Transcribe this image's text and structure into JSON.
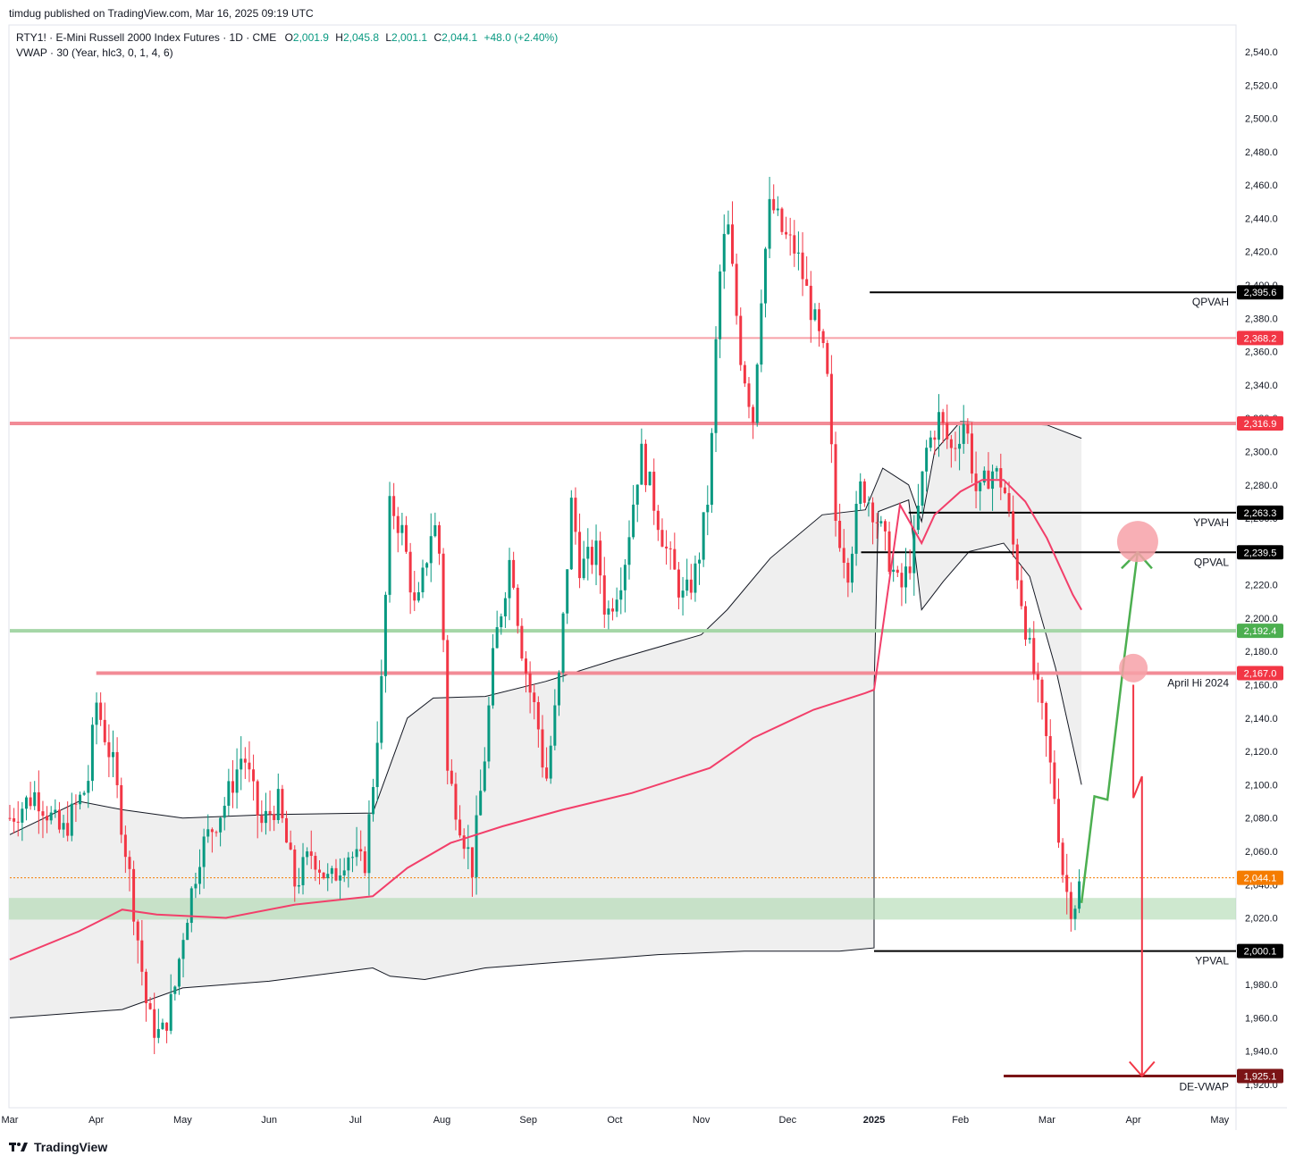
{
  "header": {
    "published": "timdug published on TradingView.com, Mar 16, 2025 09:19 UTC",
    "symbol": "RTY1! · E-Mini Russell 2000 Index Futures · 1D · CME",
    "ohlc": {
      "o_label": "O",
      "o": "2,001.9",
      "h_label": "H",
      "h": "2,045.8",
      "l_label": "L",
      "l": "2,001.1",
      "c_label": "C",
      "c": "2,044.1",
      "change": "+48.0 (+2.40%)"
    },
    "indicator": "VWAP · 30 (Year, hlc3, 0, 1, 4, 6)"
  },
  "footer": {
    "brand": "TradingView",
    "logo_icon": "tradingview-logo-icon"
  },
  "chart_data": {
    "type": "candlestick",
    "y_axis": {
      "range": [
        1915,
        2545
      ],
      "ticks": [
        "2,540.0",
        "2,520.0",
        "2,500.0",
        "2,480.0",
        "2,460.0",
        "2,440.0",
        "2,420.0",
        "2,400.0",
        "2,380.0",
        "2,360.0",
        "2,340.0",
        "2,320.0",
        "2,300.0",
        "2,280.0",
        "2,260.0",
        "2,240.0",
        "2,220.0",
        "2,200.0",
        "2,180.0",
        "2,160.0",
        "2,140.0",
        "2,120.0",
        "2,100.0",
        "2,080.0",
        "2,060.0",
        "2,040.0",
        "2,020.0",
        "2,000.0",
        "1,980.0",
        "1,960.0",
        "1,940.0",
        "1,920.0"
      ]
    },
    "x_axis": {
      "ticks": [
        {
          "label": "Mar",
          "month": 0
        },
        {
          "label": "Apr",
          "month": 1
        },
        {
          "label": "May",
          "month": 2
        },
        {
          "label": "Jun",
          "month": 3
        },
        {
          "label": "Jul",
          "month": 4
        },
        {
          "label": "Aug",
          "month": 5
        },
        {
          "label": "Sep",
          "month": 6
        },
        {
          "label": "Oct",
          "month": 7
        },
        {
          "label": "Nov",
          "month": 8
        },
        {
          "label": "Dec",
          "month": 9
        },
        {
          "label": "2025",
          "month": 10
        },
        {
          "label": "Feb",
          "month": 11
        },
        {
          "label": "Mar",
          "month": 12
        },
        {
          "label": "Apr",
          "month": 13
        },
        {
          "label": "May",
          "month": 14
        }
      ]
    },
    "price_path": [
      [
        0,
        2080
      ],
      [
        0.3,
        2095
      ],
      [
        0.6,
        2070
      ],
      [
        0.9,
        2100
      ],
      [
        1.0,
        2150
      ],
      [
        1.2,
        2110
      ],
      [
        1.4,
        2040
      ],
      [
        1.6,
        1960
      ],
      [
        1.75,
        1948
      ],
      [
        1.9,
        1975
      ],
      [
        2.0,
        2010
      ],
      [
        2.2,
        2060
      ],
      [
        2.5,
        2090
      ],
      [
        2.7,
        2120
      ],
      [
        2.9,
        2075
      ],
      [
        3.1,
        2090
      ],
      [
        3.3,
        2040
      ],
      [
        3.5,
        2060
      ],
      [
        3.7,
        2040
      ],
      [
        3.9,
        2060
      ],
      [
        4.1,
        2050
      ],
      [
        4.2,
        2100
      ],
      [
        4.3,
        2160
      ],
      [
        4.4,
        2270
      ],
      [
        4.55,
        2250
      ],
      [
        4.7,
        2200
      ],
      [
        4.9,
        2260
      ],
      [
        5.0,
        2230
      ],
      [
        5.05,
        2110
      ],
      [
        5.2,
        2080
      ],
      [
        5.35,
        2050
      ],
      [
        5.5,
        2120
      ],
      [
        5.6,
        2180
      ],
      [
        5.8,
        2240
      ],
      [
        5.9,
        2190
      ],
      [
        6.0,
        2160
      ],
      [
        6.1,
        2140
      ],
      [
        6.2,
        2100
      ],
      [
        6.35,
        2160
      ],
      [
        6.5,
        2270
      ],
      [
        6.6,
        2230
      ],
      [
        6.8,
        2240
      ],
      [
        6.9,
        2200
      ],
      [
        7.1,
        2230
      ],
      [
        7.3,
        2300
      ],
      [
        7.45,
        2270
      ],
      [
        7.6,
        2240
      ],
      [
        7.8,
        2210
      ],
      [
        7.95,
        2230
      ],
      [
        8.1,
        2280
      ],
      [
        8.2,
        2400
      ],
      [
        8.3,
        2440
      ],
      [
        8.45,
        2360
      ],
      [
        8.6,
        2320
      ],
      [
        8.7,
        2400
      ],
      [
        8.8,
        2450
      ],
      [
        8.95,
        2430
      ],
      [
        9.1,
        2420
      ],
      [
        9.3,
        2380
      ],
      [
        9.45,
        2350
      ],
      [
        9.55,
        2260
      ],
      [
        9.7,
        2230
      ],
      [
        9.85,
        2280
      ],
      [
        10.0,
        2265
      ],
      [
        10.15,
        2240
      ],
      [
        10.3,
        2215
      ],
      [
        10.45,
        2240
      ],
      [
        10.6,
        2300
      ],
      [
        10.75,
        2320
      ],
      [
        10.9,
        2300
      ],
      [
        11.05,
        2320
      ],
      [
        11.2,
        2270
      ],
      [
        11.35,
        2290
      ],
      [
        11.5,
        2280
      ],
      [
        11.65,
        2230
      ],
      [
        11.8,
        2180
      ],
      [
        11.95,
        2140
      ],
      [
        12.1,
        2090
      ],
      [
        12.2,
        2040
      ],
      [
        12.3,
        2025
      ],
      [
        12.4,
        2044.1
      ]
    ],
    "vwap_line": [
      [
        0,
        1995
      ],
      [
        0.8,
        2012
      ],
      [
        1.3,
        2025
      ],
      [
        1.7,
        2022
      ],
      [
        2.5,
        2020
      ],
      [
        3.3,
        2028
      ],
      [
        4.2,
        2033
      ],
      [
        4.6,
        2050
      ],
      [
        5.1,
        2065
      ],
      [
        5.7,
        2075
      ],
      [
        6.4,
        2085
      ],
      [
        7.2,
        2095
      ],
      [
        8.1,
        2110
      ],
      [
        8.6,
        2128
      ],
      [
        9.3,
        2145
      ],
      [
        9.9,
        2155
      ],
      [
        10.0,
        2157
      ],
      [
        10.3,
        2268
      ],
      [
        10.55,
        2245
      ],
      [
        10.7,
        2262
      ],
      [
        11.0,
        2276
      ],
      [
        11.25,
        2283
      ],
      [
        11.5,
        2283
      ],
      [
        11.75,
        2270
      ],
      [
        12.0,
        2248
      ],
      [
        12.3,
        2214
      ],
      [
        12.4,
        2205
      ]
    ],
    "bands_upper": [
      [
        0,
        2070
      ],
      [
        0.8,
        2090
      ],
      [
        1.3,
        2085
      ],
      [
        2.0,
        2080
      ],
      [
        3.0,
        2082
      ],
      [
        4.2,
        2083
      ],
      [
        4.6,
        2140
      ],
      [
        4.9,
        2152
      ],
      [
        5.5,
        2153
      ],
      [
        6.2,
        2162
      ],
      [
        7.0,
        2175
      ],
      [
        8.0,
        2190
      ],
      [
        8.3,
        2205
      ],
      [
        8.8,
        2236
      ],
      [
        9.4,
        2262
      ],
      [
        9.9,
        2265
      ],
      [
        10.1,
        2290
      ],
      [
        10.4,
        2280
      ],
      [
        10.55,
        2258
      ],
      [
        10.7,
        2300
      ],
      [
        11.0,
        2318
      ],
      [
        11.5,
        2317
      ],
      [
        12.0,
        2316
      ],
      [
        12.4,
        2308
      ]
    ],
    "bands_lower": [
      [
        0,
        1960
      ],
      [
        1.3,
        1965
      ],
      [
        2.0,
        1978
      ],
      [
        3.0,
        1982
      ],
      [
        4.2,
        1990
      ],
      [
        4.4,
        1985
      ],
      [
        4.8,
        1983
      ],
      [
        5.5,
        1990
      ],
      [
        6.5,
        1994
      ],
      [
        7.5,
        1998
      ],
      [
        8.5,
        2000
      ],
      [
        9.6,
        2000
      ],
      [
        10.0,
        2002
      ],
      [
        10.0,
        2157
      ],
      [
        10.05,
        2264
      ],
      [
        10.4,
        2271
      ],
      [
        10.55,
        2205
      ],
      [
        10.8,
        2222
      ],
      [
        11.1,
        2240
      ],
      [
        11.5,
        2245
      ],
      [
        11.8,
        2225
      ],
      [
        12.1,
        2170
      ],
      [
        12.4,
        2100
      ]
    ],
    "levels": [
      {
        "name": "QPVAH",
        "value": 2395.6,
        "label": "2,395.6",
        "color": "#000000",
        "from_month": 9.95,
        "line": "solid",
        "width": 2
      },
      {
        "name": "",
        "value": 2368.2,
        "label": "2,368.2",
        "color": "#f7a1a8",
        "tag_color": "#f23645",
        "from_month": 0,
        "line": "solid",
        "width": 2
      },
      {
        "name": "",
        "value": 2316.9,
        "label": "2,316.9",
        "color": "#f28b96",
        "tag_color": "#f23645",
        "from_month": 0,
        "line": "solid",
        "width": 4
      },
      {
        "name": "YPVAH",
        "value": 2263.3,
        "label": "2,263.3",
        "color": "#000000",
        "from_month": 10.4,
        "line": "solid",
        "width": 2
      },
      {
        "name": "QPVAL",
        "value": 2239.5,
        "label": "2,239.5",
        "color": "#000000",
        "from_month": 9.85,
        "line": "solid",
        "width": 2
      },
      {
        "name": "",
        "value": 2192.4,
        "label": "2,192.4",
        "color": "#a5d6a7",
        "tag_color": "#4caf50",
        "from_month": 0,
        "line": "solid",
        "width": 4
      },
      {
        "name": "April Hi 2024",
        "value": 2167.0,
        "label": "2,167.0",
        "color": "#f28b96",
        "tag_color": "#f23645",
        "from_month": 1.0,
        "line": "solid",
        "width": 4
      },
      {
        "name": "",
        "value": 2044.1,
        "label": "2,044.1",
        "color": "#f57c00",
        "tag_color": "#f57c00",
        "from_month": 0,
        "line": "dotted",
        "width": 1
      },
      {
        "name": "YPVAL",
        "value": 2000.1,
        "label": "2,000.1",
        "color": "#000000",
        "from_month": 10.0,
        "line": "solid",
        "width": 2
      },
      {
        "name": "DE-VWAP",
        "value": 1925.1,
        "label": "1,925.1",
        "color": "#7b1416",
        "tag_color": "#7b1416",
        "from_month": 11.5,
        "line": "solid",
        "width": 3
      }
    ],
    "zone": {
      "from": 2019,
      "to": 2032,
      "color": "#a5d6a7"
    },
    "projection_up": [
      [
        12.4,
        2029
      ],
      [
        12.55,
        2093
      ],
      [
        12.7,
        2091
      ],
      [
        12.9,
        2178
      ],
      [
        13.05,
        2239.5
      ]
    ],
    "projection_down": [
      [
        13.0,
        2160
      ],
      [
        13.0,
        2092
      ],
      [
        13.1,
        2105
      ],
      [
        13.1,
        1925.1
      ]
    ],
    "markers": [
      {
        "month": 13.05,
        "value": 2246
      },
      {
        "month": 13.0,
        "value": 2170
      }
    ]
  }
}
